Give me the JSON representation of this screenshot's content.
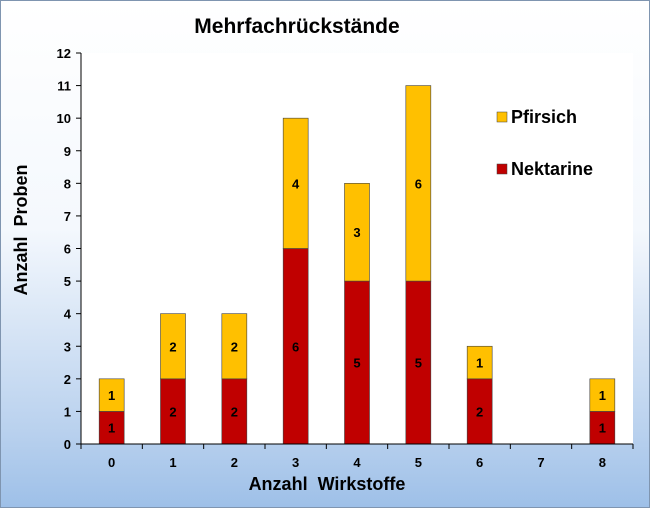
{
  "chart_data": {
    "type": "bar",
    "stacked": true,
    "title": "Mehrfachrückstände",
    "xlabel": "Anzahl  Wirkstoffe",
    "ylabel": "Anzahl  Proben",
    "categories": [
      "0",
      "1",
      "2",
      "3",
      "4",
      "5",
      "6",
      "7",
      "8"
    ],
    "ylim": [
      0,
      12
    ],
    "yticks": [
      "0",
      "1",
      "2",
      "3",
      "4",
      "5",
      "6",
      "7",
      "8",
      "9",
      "10",
      "11",
      "12"
    ],
    "grid": false,
    "legend_position": "right",
    "series": [
      {
        "name": "Nektarine",
        "color": "#c00000",
        "values": [
          1,
          2,
          2,
          6,
          5,
          5,
          2,
          0,
          1
        ],
        "labels": [
          "1",
          "2",
          "2",
          "6",
          "5",
          "5",
          "2",
          "",
          "1"
        ]
      },
      {
        "name": "Pfirsich",
        "color": "#ffc000",
        "values": [
          1,
          2,
          2,
          4,
          3,
          6,
          1,
          0,
          1
        ],
        "labels": [
          "1",
          "2",
          "2",
          "4",
          "3",
          "6",
          "1",
          "",
          "1"
        ]
      }
    ],
    "legend_order": [
      "Pfirsich",
      "Nektarine"
    ]
  }
}
